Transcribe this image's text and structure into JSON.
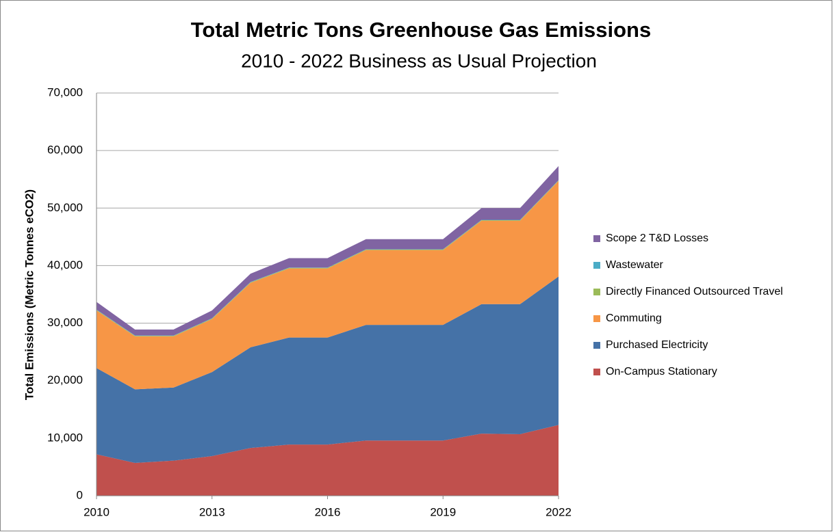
{
  "chart_data": {
    "type": "stacked_area",
    "title": "Total Metric Tons Greenhouse Gas Emissions",
    "subtitle": "2010 - 2022 Business as Usual Projection",
    "y_label": "Total Emissions (Metric Tonnes eCO2)",
    "x": [
      2010,
      2011,
      2012,
      2013,
      2014,
      2015,
      2016,
      2017,
      2018,
      2019,
      2020,
      2021,
      2022
    ],
    "xlim": [
      2010,
      2022
    ],
    "xticks": [
      2010,
      2013,
      2016,
      2019,
      2022
    ],
    "ylim": [
      0,
      70000
    ],
    "yticks": [
      0,
      {
        "value": 10000,
        "label": "10,000"
      },
      {
        "value": 20000,
        "label": "20,000"
      },
      {
        "value": 30000,
        "label": "30,000"
      },
      {
        "value": 40000,
        "label": "40,000"
      },
      {
        "value": 50000,
        "label": "50,000"
      },
      {
        "value": 60000,
        "label": "60,000"
      },
      {
        "value": 70000,
        "label": "70,000"
      }
    ],
    "grid": true,
    "legend": "right",
    "series": [
      {
        "name": "On-Campus Stationary",
        "color": "#c0504d",
        "values": [
          7200,
          5700,
          6100,
          6900,
          8300,
          8900,
          8900,
          9600,
          9600,
          9600,
          10800,
          10700,
          12300
        ]
      },
      {
        "name": "Purchased Electricity",
        "color": "#4572a7",
        "values": [
          15000,
          12800,
          12700,
          14600,
          17500,
          18600,
          18600,
          20100,
          20100,
          20100,
          22500,
          22600,
          25800
        ]
      },
      {
        "name": "Commuting",
        "color": "#f79646",
        "values": [
          10000,
          9200,
          8900,
          9200,
          11200,
          12000,
          12000,
          13000,
          13000,
          13000,
          14500,
          14500,
          16600
        ]
      },
      {
        "name": "Directly Financed Outsourced Travel",
        "color": "#9bbb59",
        "values": [
          100,
          100,
          100,
          100,
          100,
          100,
          100,
          100,
          100,
          100,
          100,
          100,
          100
        ]
      },
      {
        "name": "Wastewater",
        "color": "#4bacc6",
        "values": [
          50,
          50,
          50,
          50,
          50,
          50,
          50,
          50,
          50,
          50,
          50,
          50,
          50
        ]
      },
      {
        "name": "Scope 2 T&D Losses",
        "color": "#8064a2",
        "values": [
          1350,
          1050,
          1050,
          1350,
          1450,
          1650,
          1650,
          1750,
          1750,
          1750,
          2050,
          2050,
          2450
        ]
      }
    ]
  }
}
